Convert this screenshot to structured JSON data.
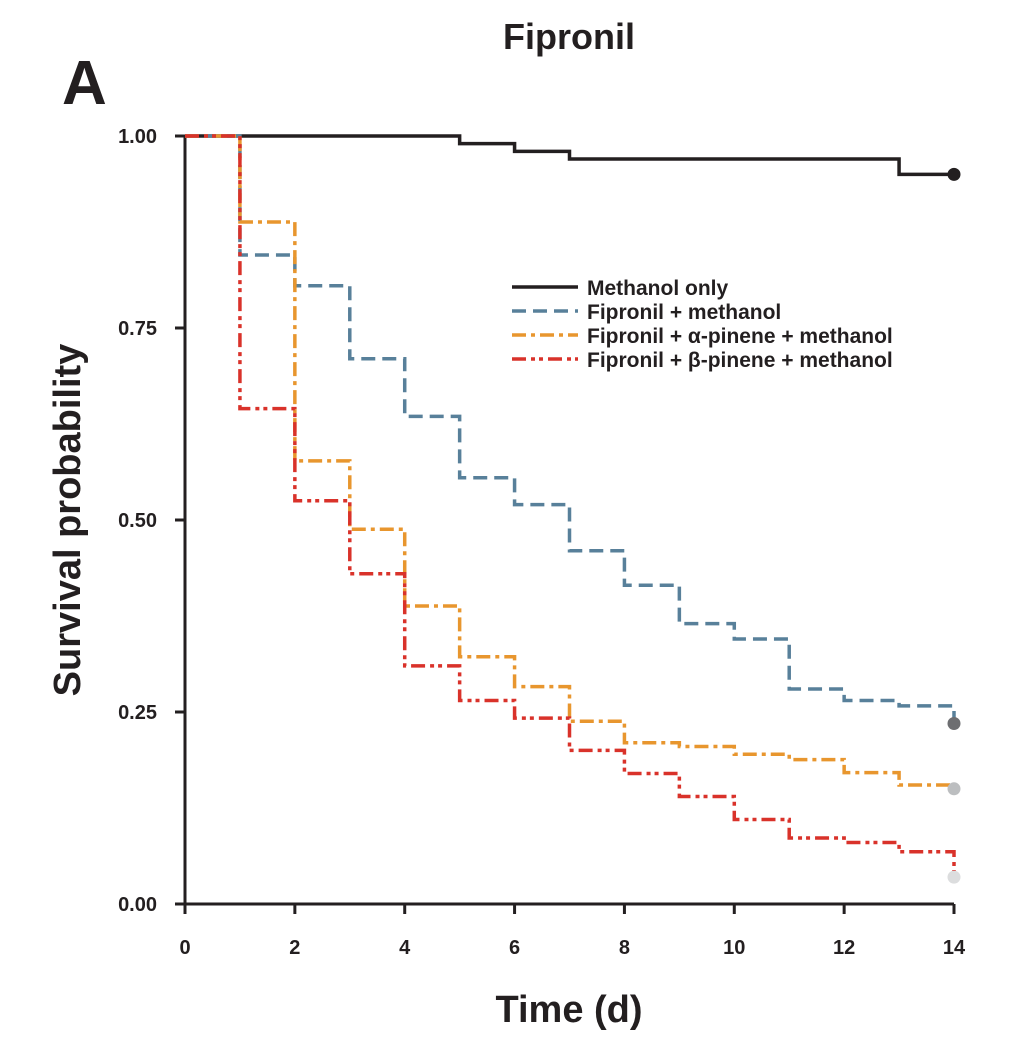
{
  "panel_label": "A",
  "chart_data": {
    "type": "line",
    "step": true,
    "title": "Fipronil",
    "xlabel": "Time (d)",
    "ylabel": "Survival probability",
    "xlim": [
      0,
      14
    ],
    "ylim": [
      0,
      1
    ],
    "xticks": [
      0,
      2,
      4,
      6,
      8,
      10,
      12,
      14
    ],
    "xtick_labels": [
      "0",
      "2",
      "4",
      "6",
      "8",
      "10",
      "12",
      "14"
    ],
    "yticks": [
      0,
      0.25,
      0.5,
      0.75,
      1
    ],
    "ytick_labels": [
      "0.00",
      "0.25",
      "0.50",
      "0.75",
      "1.00"
    ],
    "grid": false,
    "legend_position": "upper-right",
    "series": [
      {
        "name": "Methanol only",
        "color": "#231f20",
        "dash": "solid",
        "x": [
          0,
          5,
          6,
          7,
          13,
          14
        ],
        "y": [
          1.0,
          0.99,
          0.98,
          0.97,
          0.95,
          0.95
        ],
        "end_marker_color": "#231f20"
      },
      {
        "name": "Fipronil + methanol",
        "color": "#58809a",
        "dash": "dashed",
        "x": [
          0,
          1,
          2,
          3,
          4,
          5,
          6,
          7,
          8,
          9,
          10,
          11,
          12,
          13,
          14
        ],
        "y": [
          1.0,
          0.845,
          0.805,
          0.71,
          0.635,
          0.555,
          0.52,
          0.46,
          0.415,
          0.365,
          0.345,
          0.28,
          0.265,
          0.258,
          0.235
        ],
        "end_marker_color": "#6d6e71"
      },
      {
        "name": "Fipronil + α-pinene + methanol",
        "color": "#e8962e",
        "dash": "dash-dot",
        "x": [
          0,
          1,
          2,
          3,
          4,
          5,
          6,
          7,
          8,
          9,
          10,
          11,
          12,
          13,
          14
        ],
        "y": [
          1.0,
          0.888,
          0.577,
          0.488,
          0.388,
          0.322,
          0.283,
          0.238,
          0.21,
          0.205,
          0.195,
          0.188,
          0.171,
          0.155,
          0.15
        ],
        "end_marker_color": "#bcbec0"
      },
      {
        "name": "Fipronil + β-pinene + methanol",
        "color": "#d9322a",
        "dash": "dash-dot-dot",
        "x": [
          0,
          1,
          2,
          3,
          4,
          5,
          6,
          7,
          8,
          9,
          10,
          11,
          12,
          13,
          14
        ],
        "y": [
          1.0,
          0.645,
          0.525,
          0.43,
          0.31,
          0.265,
          0.242,
          0.2,
          0.17,
          0.14,
          0.11,
          0.086,
          0.08,
          0.068,
          0.035
        ],
        "end_marker_color": "#dcddde"
      }
    ]
  }
}
